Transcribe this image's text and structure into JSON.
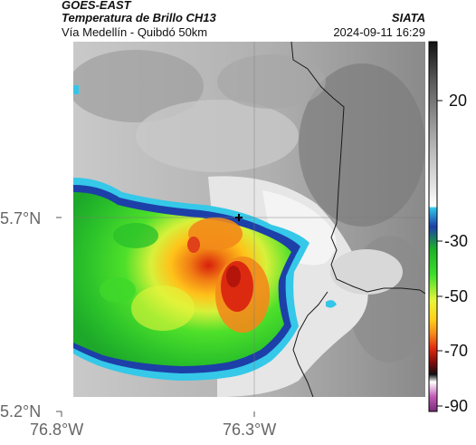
{
  "header": {
    "satellite": "GOES-EAST",
    "product": "Temperatura de Brillo CH13",
    "region": "Vía Medellín - Quibdó 50km",
    "organization": "SIATA",
    "timestamp": "2024-09-11 16:29"
  },
  "map": {
    "lat_ticks": [
      {
        "label": "5.7°N",
        "value": 5.7
      },
      {
        "label": "5.2°N",
        "value": 5.2
      }
    ],
    "lon_ticks": [
      {
        "label": "76.8°W",
        "value": -76.8
      },
      {
        "label": "76.3°W",
        "value": -76.3
      }
    ]
  },
  "colorbar": {
    "ticks": [
      {
        "label": "20",
        "value": 20
      },
      {
        "label": "-30",
        "value": -30
      },
      {
        "label": "-50",
        "value": -50
      },
      {
        "label": "-70",
        "value": -70
      },
      {
        "label": "-90",
        "value": -90
      }
    ],
    "colors": [
      "#1a1a1a",
      "#555555",
      "#8c8c8c",
      "#bdbdbd",
      "#e8e8e8",
      "#ffffff",
      "#2fc6e8",
      "#1d3fa8",
      "#1db02a",
      "#3be02a",
      "#e8f53a",
      "#ffd21a",
      "#f58a1a",
      "#e02a10",
      "#7a0a0a",
      "#111111",
      "#ffffff",
      "#c25ab8",
      "#7a2a7a"
    ]
  }
}
